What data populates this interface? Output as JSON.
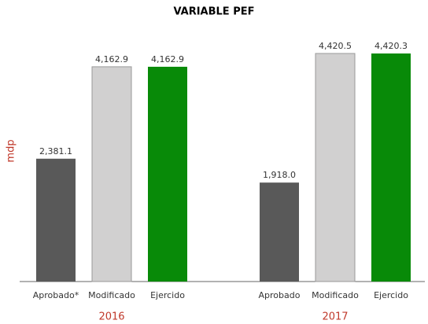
{
  "chart_data": {
    "type": "bar",
    "title": "VARIABLE PEF",
    "y_label": "mdp",
    "colors": [
      "#595959",
      "#d1d0d0",
      "#088a08"
    ],
    "groups": [
      {
        "name": "2016",
        "categories": [
          "Aprobado*",
          "Modificado",
          "Ejercido"
        ],
        "values": [
          2381.1,
          4162.9,
          4162.9
        ],
        "value_labels": [
          "2,381.1",
          "4,162.9",
          "4,162.9"
        ]
      },
      {
        "name": "2017",
        "categories": [
          "Aprobado",
          "Modificado",
          "Ejercido"
        ],
        "values": [
          1918.0,
          4420.5,
          4420.3
        ],
        "value_labels": [
          "1,918.0",
          "4,420.5",
          "4,420.3"
        ]
      }
    ]
  }
}
